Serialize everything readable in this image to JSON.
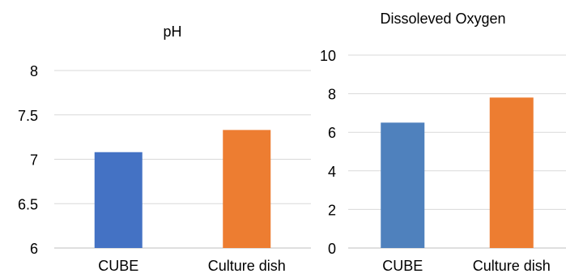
{
  "chart_data": [
    {
      "type": "bar",
      "title": "pH",
      "xlabel": "",
      "ylabel": "",
      "categories": [
        "CUBE",
        "Culture dish"
      ],
      "series": [
        {
          "values": [
            7.08,
            7.33
          ]
        }
      ],
      "colors": [
        "#4472C4",
        "#ED7D31"
      ],
      "ylim": [
        6,
        8
      ],
      "yticks": [
        "6",
        "6.5",
        "7",
        "7.5",
        "8"
      ],
      "grid": "horizontal",
      "legend": "none"
    },
    {
      "type": "bar",
      "title": "Dissoleved Oxygen",
      "xlabel": "",
      "ylabel": "",
      "categories": [
        "CUBE",
        "Culture dish"
      ],
      "series": [
        {
          "values": [
            6.5,
            7.8
          ]
        }
      ],
      "colors": [
        "#4F81BD",
        "#ED7D31"
      ],
      "ylim": [
        0,
        10
      ],
      "yticks": [
        "0",
        "2",
        "4",
        "6",
        "8",
        "10"
      ],
      "grid": "horizontal",
      "legend": "none"
    }
  ]
}
